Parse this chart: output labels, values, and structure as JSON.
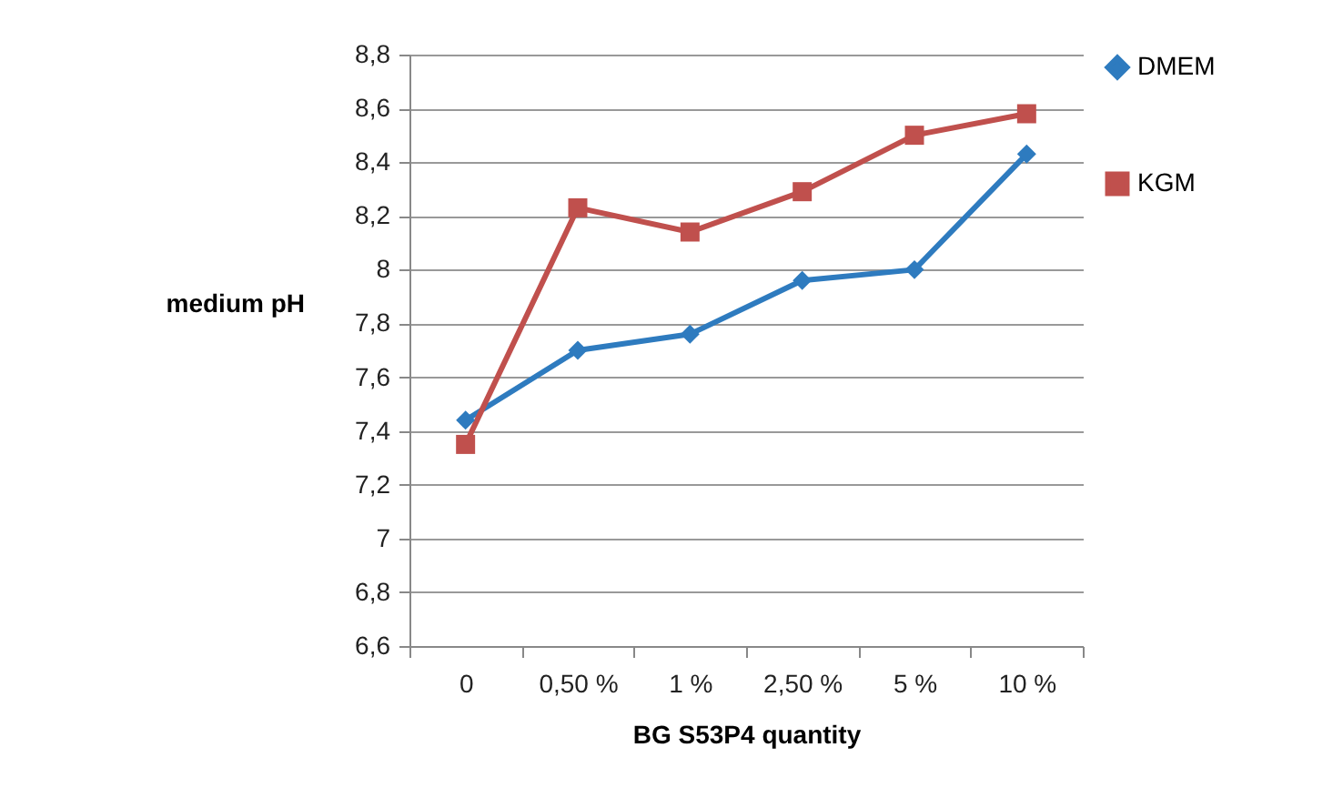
{
  "chart_data": {
    "type": "line",
    "xlabel": "BG S53P4 quantity",
    "ylabel": "medium pH",
    "categories": [
      "0",
      "0,50 %",
      "1 %",
      "2,50 %",
      "5 %",
      "10 %"
    ],
    "series": [
      {
        "name": "DMEM",
        "color": "#2e7bbf",
        "marker": "diamond",
        "values": [
          7.44,
          7.7,
          7.76,
          7.96,
          8.0,
          8.43
        ]
      },
      {
        "name": "KGM",
        "color": "#c0504d",
        "marker": "square",
        "values": [
          7.35,
          8.23,
          8.14,
          8.29,
          8.5,
          8.58
        ]
      }
    ],
    "ylim": [
      6.6,
      8.8
    ],
    "yticks": [
      {
        "value": 6.6,
        "label": "6,6"
      },
      {
        "value": 6.8,
        "label": "6,8"
      },
      7,
      {
        "value": 7.2,
        "label": "7,2"
      },
      {
        "value": 7.4,
        "label": "7,4"
      },
      {
        "value": 7.6,
        "label": "7,6"
      },
      {
        "value": 7.8,
        "label": "7,8"
      },
      8,
      {
        "value": 8.2,
        "label": "8,2"
      },
      {
        "value": 8.4,
        "label": "8,4"
      },
      {
        "value": 8.6,
        "label": "8,6"
      },
      {
        "value": 8.8,
        "label": "8,8"
      }
    ],
    "grid": "y",
    "legend": "right",
    "line_style": "solid"
  }
}
